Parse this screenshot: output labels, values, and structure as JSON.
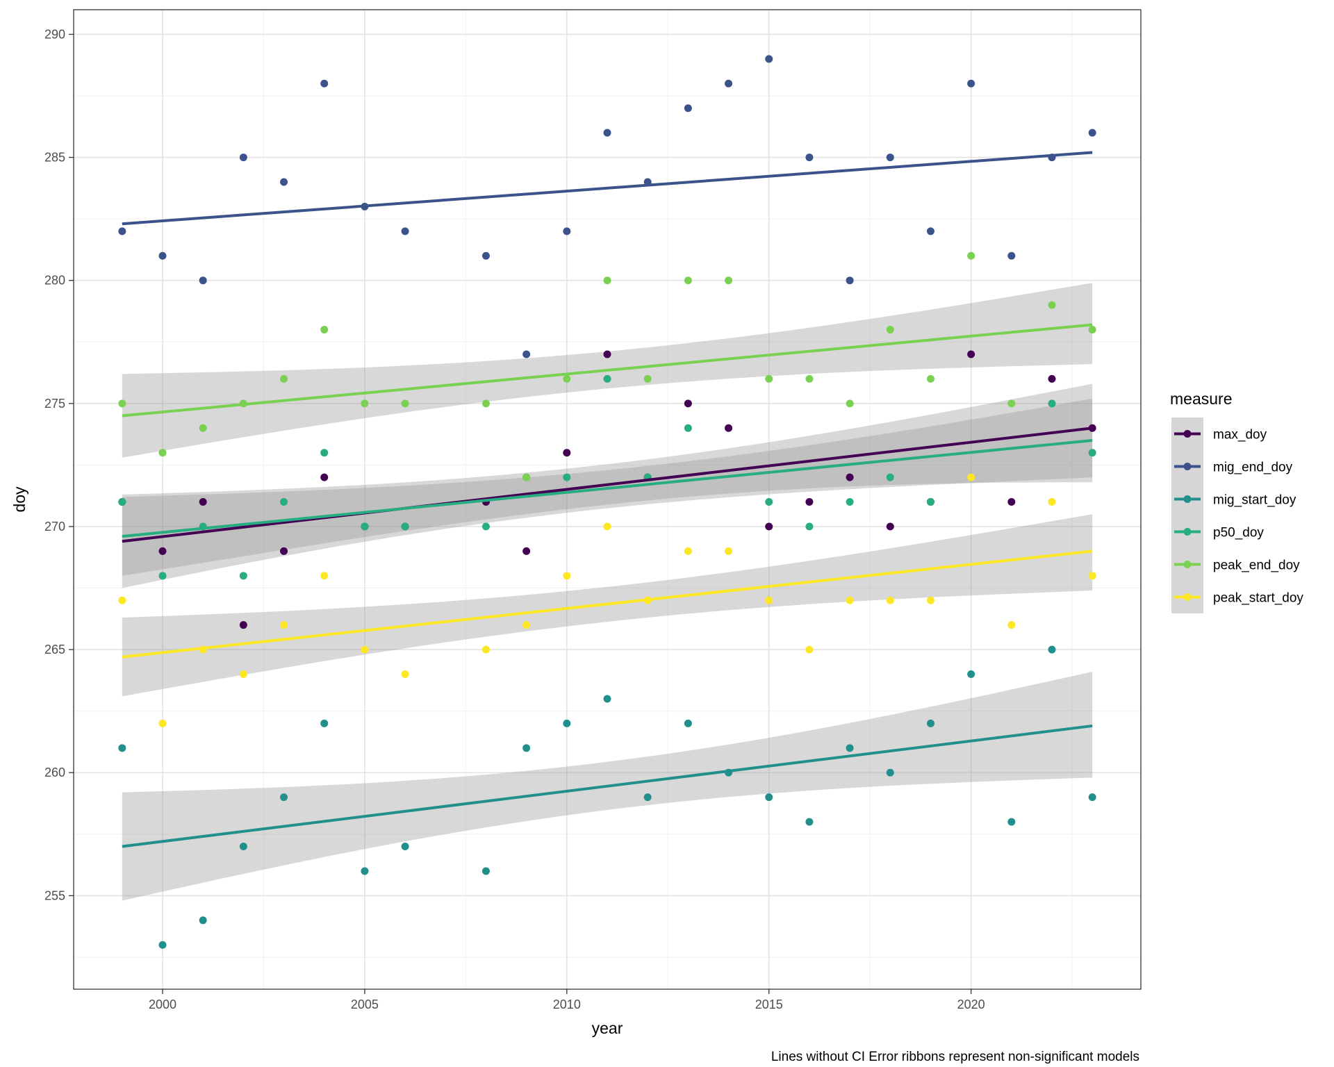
{
  "chart_data": {
    "type": "scatter",
    "xlabel": "year",
    "ylabel": "doy",
    "caption": "Lines without CI Error ribbons represent non-significant models",
    "xlim": [
      1997.8,
      2024.2
    ],
    "ylim": [
      251.2,
      291
    ],
    "x_ticks": [
      2000,
      2005,
      2010,
      2015,
      2020
    ],
    "y_ticks": [
      255,
      260,
      265,
      270,
      275,
      280,
      285,
      290
    ],
    "grid": true,
    "legend": {
      "title": "measure",
      "position": "right"
    },
    "series": [
      {
        "name": "max_doy",
        "color": "#440154",
        "points": [
          [
            1999,
            271
          ],
          [
            2000,
            269
          ],
          [
            2001,
            271
          ],
          [
            2002,
            266
          ],
          [
            2003,
            269
          ],
          [
            2004,
            272
          ],
          [
            2005,
            270
          ],
          [
            2006,
            270
          ],
          [
            2008,
            271
          ],
          [
            2009,
            269
          ],
          [
            2010,
            273
          ],
          [
            2011,
            277
          ],
          [
            2012,
            272
          ],
          [
            2013,
            275
          ],
          [
            2014,
            274
          ],
          [
            2015,
            270
          ],
          [
            2016,
            271
          ],
          [
            2017,
            272
          ],
          [
            2018,
            270
          ],
          [
            2019,
            271
          ],
          [
            2020,
            277
          ],
          [
            2021,
            271
          ],
          [
            2022,
            276
          ],
          [
            2023,
            274
          ]
        ],
        "trend": {
          "start": [
            1999,
            269.4
          ],
          "end": [
            2023,
            274.0
          ]
        },
        "ribbon": {
          "lower": [
            268.0,
            271.8
          ],
          "upper": [
            271.3,
            275.8
          ]
        }
      },
      {
        "name": "mig_end_doy",
        "color": "#3b528b",
        "points": [
          [
            1999,
            282
          ],
          [
            2000,
            281
          ],
          [
            2001,
            280
          ],
          [
            2002,
            285
          ],
          [
            2003,
            284
          ],
          [
            2004,
            288
          ],
          [
            2005,
            283
          ],
          [
            2006,
            282
          ],
          [
            2008,
            281
          ],
          [
            2009,
            277
          ],
          [
            2010,
            282
          ],
          [
            2011,
            286
          ],
          [
            2012,
            284
          ],
          [
            2013,
            287
          ],
          [
            2014,
            288
          ],
          [
            2015,
            289
          ],
          [
            2016,
            285
          ],
          [
            2017,
            280
          ],
          [
            2018,
            285
          ],
          [
            2019,
            282
          ],
          [
            2020,
            288
          ],
          [
            2021,
            281
          ],
          [
            2022,
            285
          ],
          [
            2023,
            286
          ]
        ],
        "trend": {
          "start": [
            1999,
            282.3
          ],
          "end": [
            2023,
            285.2
          ]
        },
        "ribbon": null
      },
      {
        "name": "mig_start_doy",
        "color": "#21908c",
        "points": [
          [
            1999,
            261
          ],
          [
            2000,
            253
          ],
          [
            2001,
            254
          ],
          [
            2002,
            257
          ],
          [
            2003,
            259
          ],
          [
            2004,
            262
          ],
          [
            2005,
            256
          ],
          [
            2006,
            257
          ],
          [
            2008,
            256
          ],
          [
            2009,
            261
          ],
          [
            2010,
            262
          ],
          [
            2011,
            263
          ],
          [
            2012,
            259
          ],
          [
            2013,
            262
          ],
          [
            2014,
            260
          ],
          [
            2015,
            259
          ],
          [
            2016,
            258
          ],
          [
            2017,
            261
          ],
          [
            2018,
            260
          ],
          [
            2019,
            262
          ],
          [
            2020,
            264
          ],
          [
            2021,
            258
          ],
          [
            2022,
            265
          ],
          [
            2023,
            259
          ]
        ],
        "trend": {
          "start": [
            1999,
            257.0
          ],
          "end": [
            2023,
            261.9
          ]
        },
        "ribbon": {
          "lower": [
            254.8,
            259.8
          ],
          "upper": [
            259.2,
            264.1
          ]
        }
      },
      {
        "name": "p50_doy",
        "color": "#27ad81",
        "points": [
          [
            1999,
            271
          ],
          [
            2000,
            268
          ],
          [
            2001,
            270
          ],
          [
            2002,
            268
          ],
          [
            2003,
            271
          ],
          [
            2004,
            273
          ],
          [
            2005,
            270
          ],
          [
            2006,
            270
          ],
          [
            2008,
            270
          ],
          [
            2009,
            272
          ],
          [
            2010,
            272
          ],
          [
            2011,
            276
          ],
          [
            2012,
            272
          ],
          [
            2013,
            274
          ],
          [
            2015,
            271
          ],
          [
            2016,
            270
          ],
          [
            2017,
            271
          ],
          [
            2018,
            272
          ],
          [
            2019,
            271
          ],
          [
            2022,
            275
          ],
          [
            2023,
            273
          ]
        ],
        "trend": {
          "start": [
            1999,
            269.6
          ],
          "end": [
            2023,
            273.5
          ]
        },
        "ribbon": {
          "lower": [
            267.5,
            272.0
          ],
          "upper": [
            271.2,
            275.2
          ]
        }
      },
      {
        "name": "peak_end_doy",
        "color": "#7ad151",
        "points": [
          [
            1999,
            275
          ],
          [
            2000,
            273
          ],
          [
            2001,
            274
          ],
          [
            2002,
            275
          ],
          [
            2003,
            276
          ],
          [
            2004,
            278
          ],
          [
            2005,
            275
          ],
          [
            2006,
            275
          ],
          [
            2008,
            275
          ],
          [
            2009,
            272
          ],
          [
            2010,
            276
          ],
          [
            2011,
            280
          ],
          [
            2012,
            276
          ],
          [
            2013,
            280
          ],
          [
            2014,
            280
          ],
          [
            2015,
            276
          ],
          [
            2016,
            276
          ],
          [
            2017,
            275
          ],
          [
            2018,
            278
          ],
          [
            2019,
            276
          ],
          [
            2020,
            281
          ],
          [
            2021,
            275
          ],
          [
            2022,
            279
          ],
          [
            2023,
            278
          ]
        ],
        "trend": {
          "start": [
            1999,
            274.5
          ],
          "end": [
            2023,
            278.2
          ]
        },
        "ribbon": {
          "lower": [
            272.8,
            276.6
          ],
          "upper": [
            276.2,
            279.9
          ]
        }
      },
      {
        "name": "peak_start_doy",
        "color": "#fde725",
        "points": [
          [
            1999,
            267
          ],
          [
            2000,
            262
          ],
          [
            2001,
            265
          ],
          [
            2002,
            264
          ],
          [
            2003,
            266
          ],
          [
            2004,
            268
          ],
          [
            2005,
            265
          ],
          [
            2006,
            264
          ],
          [
            2008,
            265
          ],
          [
            2009,
            266
          ],
          [
            2010,
            268
          ],
          [
            2011,
            270
          ],
          [
            2012,
            267
          ],
          [
            2013,
            269
          ],
          [
            2014,
            269
          ],
          [
            2015,
            267
          ],
          [
            2016,
            265
          ],
          [
            2017,
            267
          ],
          [
            2018,
            267
          ],
          [
            2019,
            267
          ],
          [
            2020,
            272
          ],
          [
            2021,
            266
          ],
          [
            2022,
            271
          ],
          [
            2023,
            268
          ]
        ],
        "trend": {
          "start": [
            1999,
            264.7
          ],
          "end": [
            2023,
            269.0
          ]
        },
        "ribbon": {
          "lower": [
            263.1,
            267.4
          ],
          "upper": [
            266.3,
            270.5
          ]
        }
      }
    ]
  }
}
